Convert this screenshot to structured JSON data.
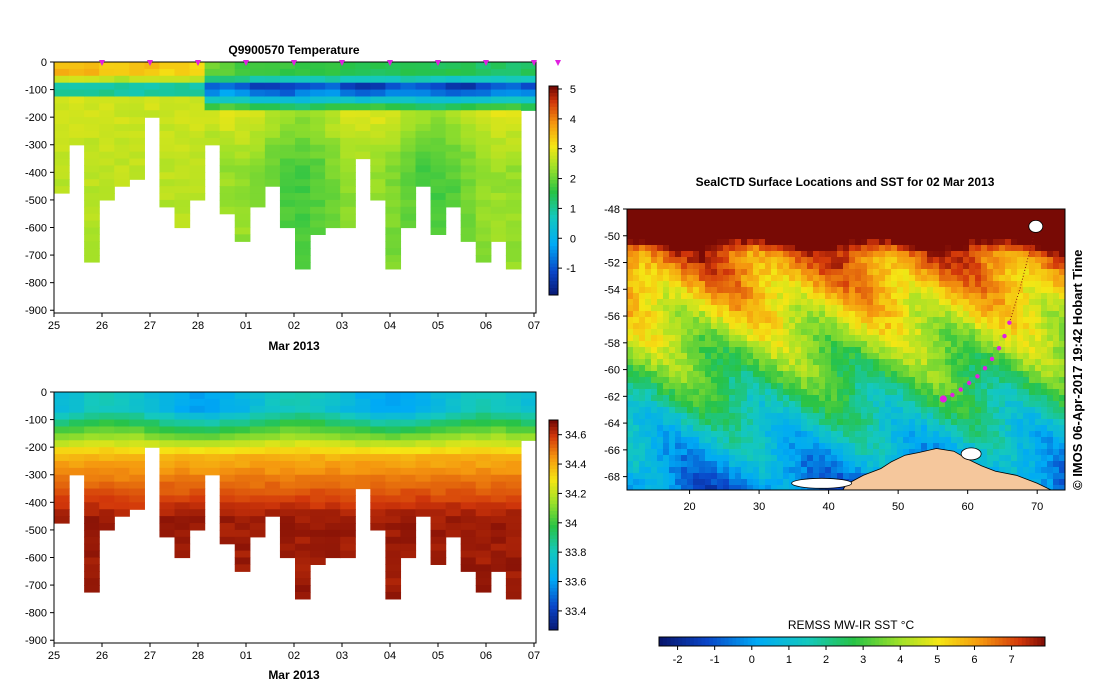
{
  "chart_data": [
    {
      "type": "heatmap",
      "id": "temperature-section",
      "title": "Q9900570  Temperature",
      "xlabel": "Mar 2013",
      "x_tick_labels": [
        "25",
        "26",
        "27",
        "28",
        "01",
        "02",
        "03",
        "04",
        "05",
        "06",
        "07"
      ],
      "y_tick_labels": [
        "0",
        "-100",
        "-200",
        "-300",
        "-400",
        "-500",
        "-600",
        "-700",
        "-800",
        "-900"
      ],
      "ylim": [
        -910,
        0
      ],
      "colorbar": {
        "ticks": [
          "5",
          "4",
          "3",
          "2",
          "1",
          "0",
          "-1"
        ],
        "range": [
          -1.9,
          5.1
        ]
      },
      "profile_markers_days": [
        1,
        2,
        3,
        4,
        5,
        6,
        7,
        8,
        9,
        10,
        10.5
      ],
      "profile_depths": [
        460,
        300,
        720,
        490,
        430,
        415,
        200,
        515,
        590,
        490,
        290,
        540,
        635,
        520,
        430,
        580,
        730,
        620,
        590,
        580,
        330,
        500,
        730,
        600,
        430,
        620,
        525,
        640,
        720,
        640,
        740,
        170
      ],
      "surface_temps": [
        3.6,
        3.5,
        3.6,
        3.4,
        3.3,
        3.4,
        3.5,
        3.3,
        3.3,
        3.2,
        2.1,
        1.9,
        1.8,
        1.8,
        1.7,
        1.7,
        1.6,
        1.6,
        1.6,
        1.6,
        1.5,
        1.5,
        1.5,
        1.5,
        1.5,
        1.5,
        1.5,
        1.5,
        1.4,
        1.4,
        1.4,
        1.4
      ]
    },
    {
      "type": "heatmap",
      "id": "salinity-section",
      "title": "",
      "xlabel": "Mar 2013",
      "x_tick_labels": [
        "25",
        "26",
        "27",
        "28",
        "01",
        "02",
        "03",
        "04",
        "05",
        "06",
        "07"
      ],
      "y_tick_labels": [
        "0",
        "-100",
        "-200",
        "-300",
        "-400",
        "-500",
        "-600",
        "-700",
        "-800",
        "-900"
      ],
      "ylim": [
        -910,
        0
      ],
      "colorbar": {
        "ticks": [
          "34.6",
          "34.4",
          "34.2",
          "34",
          "33.8",
          "33.6",
          "33.4"
        ],
        "range": [
          33.27,
          34.7
        ]
      },
      "surface_salinity": 33.75,
      "deep_salinity": 34.66
    },
    {
      "type": "heatmap",
      "id": "sst-map",
      "title": "SealCTD Surface Locations and SST for 02 Mar 2013",
      "x_tick_labels": [
        "20",
        "30",
        "40",
        "50",
        "60",
        "70"
      ],
      "y_tick_labels": [
        "-48",
        "-50",
        "-52",
        "-54",
        "-56",
        "-58",
        "-60",
        "-62",
        "-64",
        "-66",
        "-68"
      ],
      "xlim": [
        11,
        74
      ],
      "ylim": [
        -69,
        -48
      ],
      "track_positions": [
        [
          56.5,
          -62.2
        ],
        [
          57.8,
          -61.9
        ],
        [
          59.0,
          -61.5
        ],
        [
          60.2,
          -61.0
        ],
        [
          61.4,
          -60.5
        ],
        [
          62.5,
          -59.9
        ],
        [
          63.5,
          -59.2
        ],
        [
          64.5,
          -58.4
        ],
        [
          65.3,
          -57.5
        ],
        [
          66.0,
          -56.5
        ]
      ],
      "colorbar_label": "REMSS MW-IR SST °C",
      "colorbar_ticks": [
        "-2",
        "-1",
        "0",
        "1",
        "2",
        "3",
        "4",
        "5",
        "6",
        "7"
      ],
      "colorbar_range": [
        -2.5,
        7.9
      ]
    }
  ],
  "credit": "© IMOS 06-Apr-2017 19:42 Hobart Time"
}
